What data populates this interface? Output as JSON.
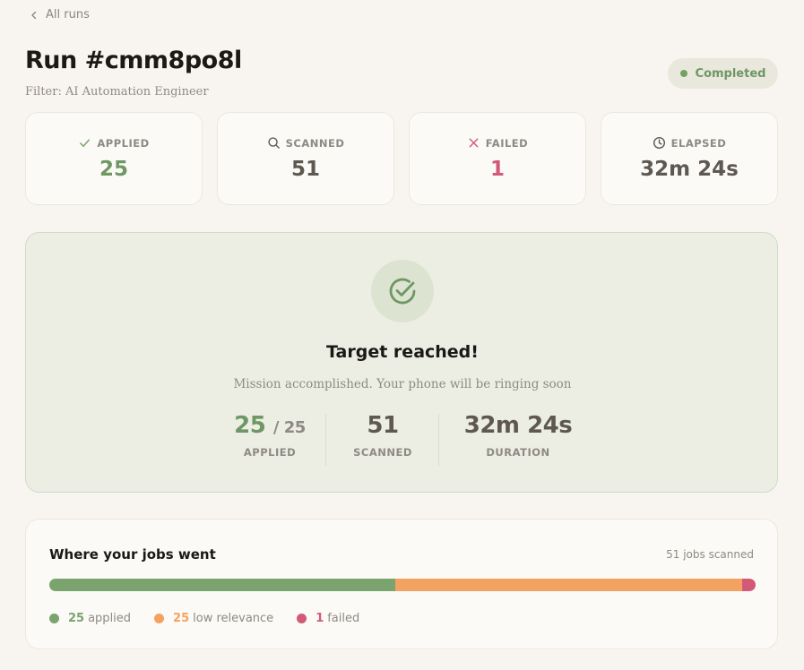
{
  "nav": {
    "back_label": "All runs"
  },
  "run": {
    "title": "Run #cmm8po8l",
    "filter": "Filter: AI Automation Engineer",
    "status": "Completed"
  },
  "colors": {
    "green": "#7aa36d",
    "orange": "#f4a261",
    "pink": "#d25a76"
  },
  "stats": [
    {
      "icon": "check-icon",
      "label": "APPLIED",
      "value": "25",
      "tone": "green"
    },
    {
      "icon": "search-icon",
      "label": "SCANNED",
      "value": "51",
      "tone": "neutral"
    },
    {
      "icon": "x-icon",
      "label": "FAILED",
      "value": "1",
      "tone": "pink"
    },
    {
      "icon": "clock-icon",
      "label": "ELAPSED",
      "value": "32m 24s",
      "tone": "neutral"
    }
  ],
  "target": {
    "title": "Target reached!",
    "subtitle": "Mission accomplished. Your phone will be ringing soon",
    "applied": {
      "value": "25",
      "of": "/ 25",
      "label": "APPLIED"
    },
    "scanned": {
      "value": "51",
      "label": "SCANNED"
    },
    "duration": {
      "value": "32m 24s",
      "label": "DURATION"
    }
  },
  "jobs": {
    "title": "Where your jobs went",
    "count": "51 jobs scanned",
    "segments": [
      {
        "value": 25,
        "count": "25",
        "label": "applied",
        "color": "#7aa36d"
      },
      {
        "value": 25,
        "count": "25",
        "label": "low relevance",
        "color": "#f4a261"
      },
      {
        "value": 1,
        "count": "1",
        "label": "failed",
        "color": "#d25a76"
      }
    ]
  }
}
